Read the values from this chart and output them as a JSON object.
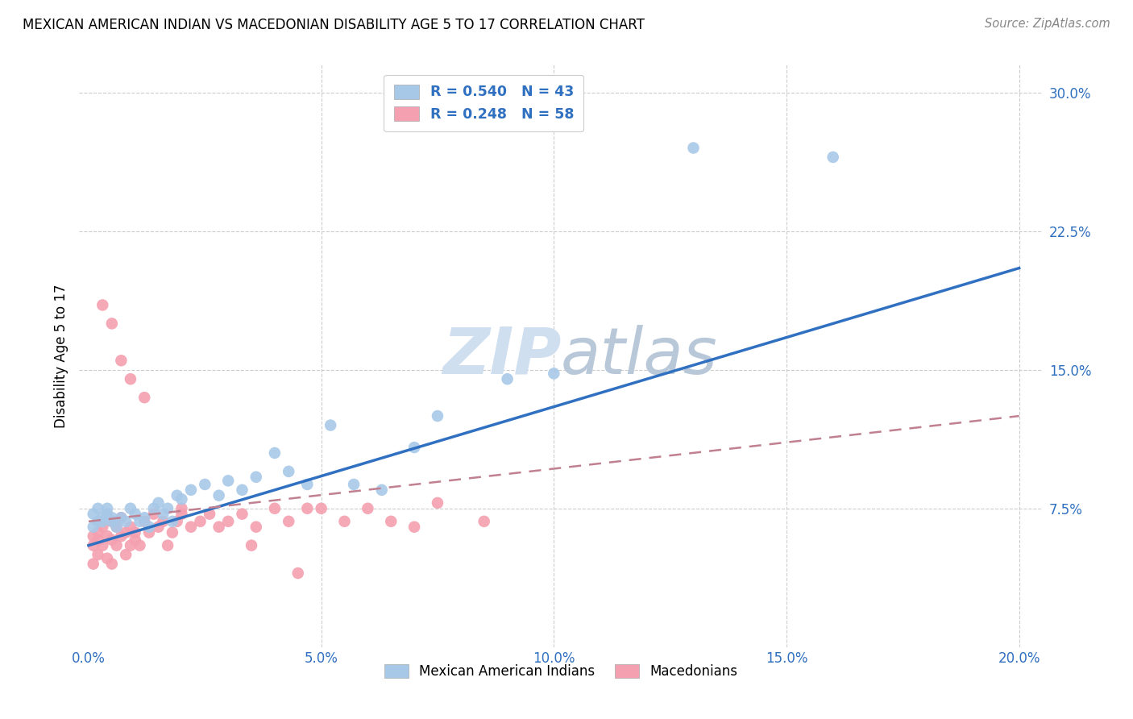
{
  "title": "MEXICAN AMERICAN INDIAN VS MACEDONIAN DISABILITY AGE 5 TO 17 CORRELATION CHART",
  "source": "Source: ZipAtlas.com",
  "ylabel": "Disability Age 5 to 17",
  "xlabel_ticks": [
    "0.0%",
    "5.0%",
    "10.0%",
    "15.0%",
    "20.0%"
  ],
  "xlabel_vals": [
    0.0,
    0.05,
    0.1,
    0.15,
    0.2
  ],
  "ylabel_ticks": [
    "7.5%",
    "15.0%",
    "22.5%",
    "30.0%"
  ],
  "ylabel_vals": [
    0.075,
    0.15,
    0.225,
    0.3
  ],
  "xlim": [
    -0.002,
    0.205
  ],
  "ylim": [
    0.0,
    0.315
  ],
  "legend_blue_R": "R = 0.540",
  "legend_blue_N": "N = 43",
  "legend_pink_R": "R = 0.248",
  "legend_pink_N": "N = 58",
  "legend_label_blue": "Mexican American Indians",
  "legend_label_pink": "Macedonians",
  "blue_color": "#a8c8e8",
  "pink_color": "#f4a0b0",
  "line_blue_color": "#3070c0",
  "line_pink_color": "#c08090",
  "watermark_color": "#d0dff0",
  "blue_scatter_x": [
    0.001,
    0.001,
    0.002,
    0.002,
    0.003,
    0.003,
    0.004,
    0.004,
    0.005,
    0.005,
    0.006,
    0.007,
    0.008,
    0.009,
    0.01,
    0.011,
    0.012,
    0.013,
    0.014,
    0.015,
    0.016,
    0.017,
    0.018,
    0.019,
    0.02,
    0.022,
    0.025,
    0.028,
    0.03,
    0.033,
    0.036,
    0.04,
    0.043,
    0.047,
    0.052,
    0.057,
    0.063,
    0.07,
    0.075,
    0.09,
    0.1,
    0.13,
    0.16
  ],
  "blue_scatter_y": [
    0.065,
    0.072,
    0.068,
    0.075,
    0.07,
    0.068,
    0.072,
    0.075,
    0.068,
    0.07,
    0.065,
    0.07,
    0.068,
    0.075,
    0.072,
    0.068,
    0.07,
    0.065,
    0.075,
    0.078,
    0.072,
    0.075,
    0.068,
    0.082,
    0.08,
    0.085,
    0.088,
    0.082,
    0.09,
    0.085,
    0.092,
    0.105,
    0.095,
    0.088,
    0.12,
    0.088,
    0.085,
    0.108,
    0.125,
    0.145,
    0.148,
    0.27,
    0.265
  ],
  "pink_scatter_x": [
    0.001,
    0.001,
    0.001,
    0.002,
    0.002,
    0.002,
    0.003,
    0.003,
    0.004,
    0.004,
    0.005,
    0.005,
    0.005,
    0.006,
    0.006,
    0.007,
    0.007,
    0.008,
    0.008,
    0.009,
    0.009,
    0.01,
    0.01,
    0.011,
    0.012,
    0.013,
    0.014,
    0.015,
    0.016,
    0.017,
    0.018,
    0.019,
    0.02,
    0.022,
    0.024,
    0.026,
    0.028,
    0.03,
    0.033,
    0.036,
    0.04,
    0.043,
    0.047,
    0.05,
    0.055,
    0.06,
    0.065,
    0.07,
    0.075,
    0.085,
    0.003,
    0.005,
    0.007,
    0.009,
    0.012,
    0.02,
    0.035,
    0.045
  ],
  "pink_scatter_y": [
    0.06,
    0.055,
    0.045,
    0.058,
    0.062,
    0.05,
    0.065,
    0.055,
    0.06,
    0.048,
    0.068,
    0.058,
    0.045,
    0.065,
    0.055,
    0.07,
    0.06,
    0.062,
    0.05,
    0.055,
    0.065,
    0.058,
    0.062,
    0.055,
    0.068,
    0.062,
    0.072,
    0.065,
    0.068,
    0.055,
    0.062,
    0.068,
    0.072,
    0.065,
    0.068,
    0.072,
    0.065,
    0.068,
    0.072,
    0.065,
    0.075,
    0.068,
    0.075,
    0.075,
    0.068,
    0.075,
    0.068,
    0.065,
    0.078,
    0.068,
    0.185,
    0.175,
    0.155,
    0.145,
    0.135,
    0.075,
    0.055,
    0.04
  ],
  "blue_line_x0": 0.0,
  "blue_line_y0": 0.055,
  "blue_line_x1": 0.2,
  "blue_line_y1": 0.205,
  "pink_line_x0": 0.0,
  "pink_line_y0": 0.068,
  "pink_line_x1": 0.2,
  "pink_line_y1": 0.125
}
